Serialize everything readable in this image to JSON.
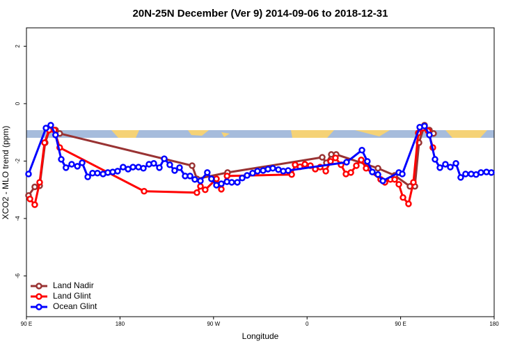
{
  "chart_data": {
    "type": "line",
    "title": "20N-25N December (Ver 9)   2014-09-06 to 2018-12-31",
    "x_label": "Longitude",
    "y_label": "XCO2 - MLO trend (ppm)",
    "xlim": [
      90,
      540
    ],
    "ylim": [
      -7.42,
      2.64
    ],
    "xticks": [
      {
        "value": 90,
        "label": "90 E"
      },
      180,
      {
        "value": 270,
        "label": "90 W"
      },
      {
        "value": 360,
        "label": "0"
      },
      {
        "value": 450,
        "label": "90 E"
      },
      {
        "value": 540,
        "label": "180"
      }
    ],
    "yticks": [
      -6,
      -4,
      -2,
      0,
      2
    ],
    "legend": "bottom-left",
    "series": [
      {
        "name": "Land Nadir",
        "color": "#993333",
        "x": [
          92,
          98,
          102.7,
          108,
          112.8,
          118,
          122,
          249.4,
          254,
          283.5,
          374.6,
          378.6,
          383.3,
          388,
          428.2,
          444.3,
          459,
          463.7,
          467.7,
          473,
          477.7,
          481.7
        ],
        "values": [
          -3.2,
          -2.9,
          -2.86,
          -1.36,
          -0.85,
          -0.92,
          -1.04,
          -2.16,
          -2.62,
          -2.4,
          -1.87,
          -2.06,
          -1.77,
          -1.77,
          -2.25,
          -2.5,
          -2.88,
          -2.88,
          -1.36,
          -0.75,
          -0.92,
          -1.04
        ]
      },
      {
        "name": "Land Glint",
        "color": "#ff0000",
        "x": [
          93.4,
          98,
          102.7,
          107.4,
          111.8,
          116.8,
          122,
          203.2,
          254,
          257.4,
          262,
          272.8,
          277.5,
          283,
          345.2,
          348.5,
          353.2,
          357.9,
          363.2,
          367.9,
          372.6,
          378,
          382.6,
          387.3,
          392.7,
          397.4,
          402.1,
          407.4,
          412.1,
          416.8,
          430.8,
          434.9,
          440.2,
          444.3,
          448.3,
          452.3,
          457.6,
          462.3,
          467,
          471.7,
          476.4,
          481
        ],
        "values": [
          -3.32,
          -3.52,
          -2.74,
          -1.36,
          -0.92,
          -0.92,
          -1.53,
          -3.05,
          -3.1,
          -2.88,
          -3.0,
          -2.62,
          -2.98,
          -2.52,
          -2.47,
          -2.13,
          -2.2,
          -2.11,
          -2.16,
          -2.28,
          -2.21,
          -2.35,
          -2.01,
          -1.89,
          -2.13,
          -2.45,
          -2.4,
          -2.16,
          -1.96,
          -2.25,
          -2.64,
          -2.74,
          -2.64,
          -2.64,
          -2.81,
          -3.27,
          -3.49,
          -2.74,
          -1.02,
          -0.85,
          -0.95,
          -1.53
        ]
      },
      {
        "name": "Ocean Glint",
        "color": "#0000ff",
        "x": [
          92,
          108.8,
          113.4,
          118,
          123.5,
          128,
          133.5,
          139,
          143.6,
          149,
          153.6,
          158.3,
          163.7,
          168.3,
          173,
          177.7,
          183,
          187.8,
          192.5,
          197.8,
          202.5,
          207.9,
          212.5,
          217.9,
          222.6,
          227.9,
          232.6,
          237.3,
          242.7,
          247.4,
          252,
          257.4,
          264,
          268,
          272.8,
          277.5,
          282.9,
          287.5,
          292.9,
          297.6,
          302.3,
          307.6,
          312.3,
          317.7,
          322.4,
          327,
          332.4,
          337.1,
          341.8,
          398,
          412.8,
          418,
          422.8,
          428.2,
          432.9,
          448.3,
          451.6,
          468.4,
          473,
          477.7,
          483.1,
          487.8,
          493.1,
          497.8,
          503.2,
          507.8,
          512.5,
          517.9,
          522.6,
          527.3,
          532.6,
          537.3
        ],
        "values": [
          -2.45,
          -0.85,
          -0.75,
          -1.09,
          -1.94,
          -2.23,
          -2.11,
          -2.18,
          -2.06,
          -2.55,
          -2.42,
          -2.42,
          -2.45,
          -2.4,
          -2.38,
          -2.35,
          -2.21,
          -2.28,
          -2.21,
          -2.21,
          -2.25,
          -2.11,
          -2.08,
          -2.23,
          -1.92,
          -2.13,
          -2.33,
          -2.23,
          -2.52,
          -2.52,
          -2.64,
          -2.69,
          -2.4,
          -2.62,
          -2.84,
          -2.79,
          -2.72,
          -2.74,
          -2.74,
          -2.59,
          -2.5,
          -2.42,
          -2.35,
          -2.33,
          -2.28,
          -2.25,
          -2.3,
          -2.35,
          -2.33,
          -2.04,
          -1.62,
          -2.01,
          -2.38,
          -2.47,
          -2.69,
          -2.4,
          -2.45,
          -0.82,
          -0.78,
          -1.09,
          -1.94,
          -2.23,
          -2.11,
          -2.21,
          -2.08,
          -2.57,
          -2.45,
          -2.45,
          -2.47,
          -2.4,
          -2.38,
          -2.4
        ]
      }
    ]
  }
}
